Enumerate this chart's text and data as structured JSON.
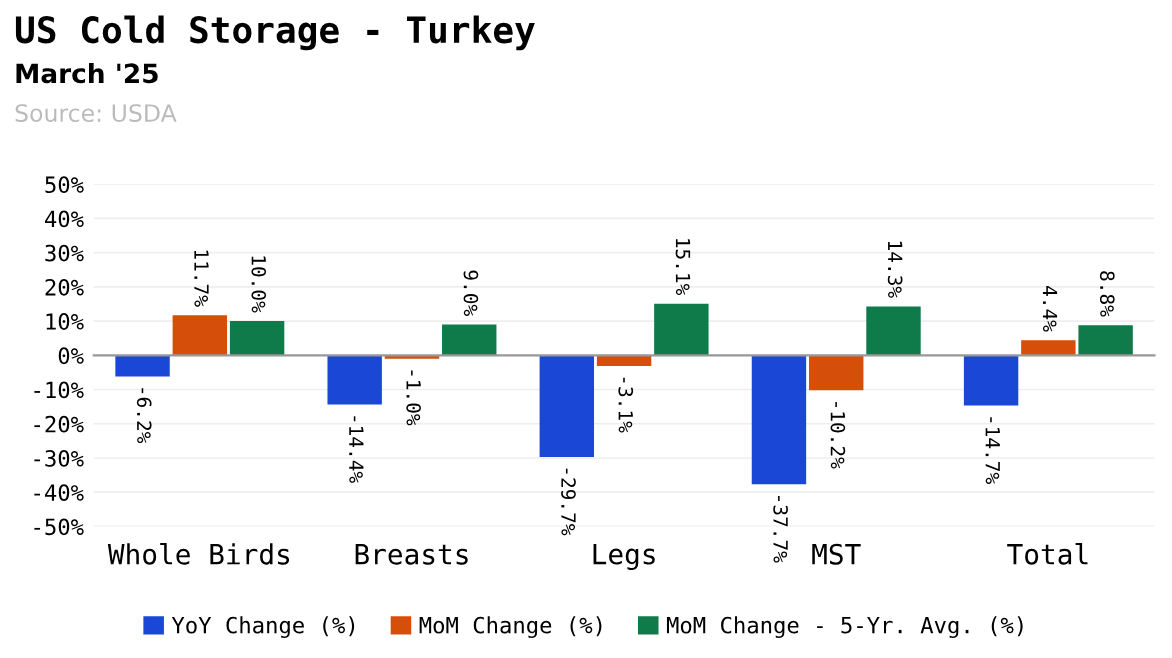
{
  "chart_data": {
    "type": "bar",
    "title": "US Cold Storage - Turkey",
    "subtitle": "March '25",
    "annotations": [
      "Source: USDA"
    ],
    "categories": [
      "Whole Birds",
      "Breasts",
      "Legs",
      "MST",
      "Total"
    ],
    "series": [
      {
        "name": "YoY Change (%)",
        "color": "#1a47d6",
        "values": [
          -6.2,
          -14.4,
          -29.7,
          -37.7,
          -14.7
        ],
        "value_labels": [
          "-6.2%",
          "-14.4%",
          "-29.7%",
          "-37.7%",
          "-14.7%"
        ]
      },
      {
        "name": "MoM Change (%)",
        "color": "#d64f0a",
        "values": [
          11.7,
          -1.0,
          -3.1,
          -10.2,
          4.4
        ],
        "value_labels": [
          "11.7%",
          "-1.0%",
          "-3.1%",
          "-10.2%",
          "4.4%"
        ]
      },
      {
        "name": "MoM Change - 5-Yr. Avg. (%)",
        "color": "#0f7a4a",
        "values": [
          10.0,
          9.0,
          15.1,
          14.3,
          8.8
        ],
        "value_labels": [
          "10.0%",
          "9.0%",
          "15.1%",
          "14.3%",
          "8.8%"
        ]
      }
    ],
    "ylim": [
      -50,
      50
    ],
    "yticks": [
      {
        "value": -50,
        "label": "-50%"
      },
      {
        "value": -40,
        "label": "-40%"
      },
      {
        "value": -30,
        "label": "-30%"
      },
      {
        "value": -20,
        "label": "-20%"
      },
      {
        "value": -10,
        "label": "-10%"
      },
      {
        "value": 0,
        "label": "0%"
      },
      {
        "value": 10,
        "label": "10%"
      },
      {
        "value": 20,
        "label": "20%"
      },
      {
        "value": 30,
        "label": "30%"
      },
      {
        "value": 40,
        "label": "40%"
      },
      {
        "value": 50,
        "label": "50%"
      }
    ],
    "grid": "y",
    "legend": "bottom"
  }
}
